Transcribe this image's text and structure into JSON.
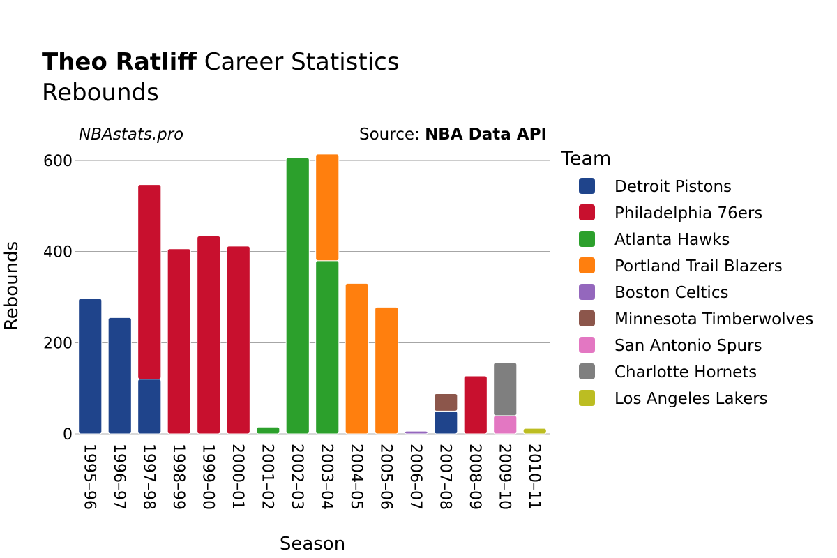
{
  "chart_data": {
    "type": "bar",
    "stacked": true,
    "title_bold": "Theo Ratliff",
    "title_rest": " Career Statistics",
    "subtitle": "Rebounds",
    "watermark": "NBAstats.pro",
    "source_prefix": "Source: ",
    "source_name": "NBA Data API",
    "xlabel": "Season",
    "ylabel": "Rebounds",
    "ylim": [
      0,
      600
    ],
    "yticks": [
      0,
      200,
      400,
      600
    ],
    "grid": true,
    "legend_title": "Team",
    "legend_position": "right",
    "categories": [
      "1995–96",
      "1996–97",
      "1997–98",
      "1998–99",
      "1999–00",
      "2000–01",
      "2001–02",
      "2002–03",
      "2003–04",
      "2004–05",
      "2005–06",
      "2006–07",
      "2007–08",
      "2008–09",
      "2009–10",
      "2010–11"
    ],
    "series": [
      {
        "name": "Detroit Pistons",
        "color": "#1f448b",
        "values": [
          297,
          255,
          120,
          0,
          0,
          0,
          0,
          0,
          0,
          0,
          0,
          0,
          50,
          0,
          0,
          0
        ]
      },
      {
        "name": "Philadelphia 76ers",
        "color": "#c8102e",
        "values": [
          0,
          0,
          427,
          406,
          434,
          412,
          0,
          0,
          0,
          0,
          0,
          0,
          0,
          127,
          0,
          0
        ]
      },
      {
        "name": "Atlanta Hawks",
        "color": "#2ca02c",
        "values": [
          0,
          0,
          0,
          0,
          0,
          0,
          15,
          606,
          380,
          0,
          0,
          0,
          0,
          0,
          0,
          0
        ]
      },
      {
        "name": "Portland Trail Blazers",
        "color": "#ff7f0e",
        "values": [
          0,
          0,
          0,
          0,
          0,
          0,
          0,
          0,
          234,
          330,
          278,
          0,
          0,
          0,
          0,
          0
        ]
      },
      {
        "name": "Boston Celtics",
        "color": "#9467bd",
        "values": [
          0,
          0,
          0,
          0,
          0,
          0,
          0,
          0,
          0,
          0,
          0,
          6,
          0,
          0,
          0,
          0
        ]
      },
      {
        "name": "Minnesota Timberwolves",
        "color": "#8c564b",
        "values": [
          0,
          0,
          0,
          0,
          0,
          0,
          0,
          0,
          0,
          0,
          0,
          0,
          38,
          0,
          0,
          0
        ]
      },
      {
        "name": "San Antonio Spurs",
        "color": "#e377c2",
        "values": [
          0,
          0,
          0,
          0,
          0,
          0,
          0,
          0,
          0,
          0,
          0,
          0,
          0,
          0,
          40,
          0
        ]
      },
      {
        "name": "Charlotte Hornets",
        "color": "#7f7f7f",
        "values": [
          0,
          0,
          0,
          0,
          0,
          0,
          0,
          0,
          0,
          0,
          0,
          0,
          0,
          0,
          116,
          0
        ]
      },
      {
        "name": "Los Angeles Lakers",
        "color": "#bcbd22",
        "values": [
          0,
          0,
          0,
          0,
          0,
          0,
          0,
          0,
          0,
          0,
          0,
          0,
          0,
          0,
          0,
          12
        ]
      }
    ]
  }
}
